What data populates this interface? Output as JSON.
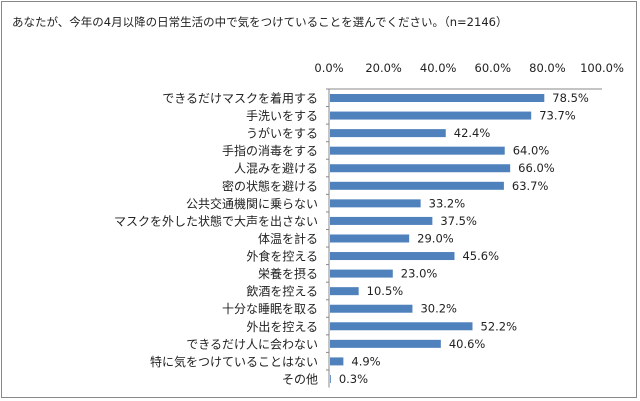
{
  "chart_data": {
    "type": "bar",
    "orientation": "horizontal",
    "title": "あなたが、今年の4月以降の日常生活の中で気をつけていることを選んでください。（n=2146）",
    "categories": [
      "できるだけマスクを着用する",
      "手洗いをする",
      "うがいをする",
      "手指の消毒をする",
      "人混みを避ける",
      "密の状態を避ける",
      "公共交通機関に乗らない",
      "マスクを外した状態で大声を出さない",
      "体温を計る",
      "外食を控える",
      "栄養を摂る",
      "飲酒を控える",
      "十分な睡眠を取る",
      "外出を控える",
      "できるだけ人に会わない",
      "特に気をつけていることはない",
      "その他"
    ],
    "values": [
      78.5,
      73.7,
      42.4,
      64.0,
      66.0,
      63.7,
      33.2,
      37.5,
      29.0,
      45.6,
      23.0,
      10.5,
      30.2,
      52.2,
      40.6,
      4.9,
      0.3
    ],
    "data_labels": [
      "78.5%",
      "73.7%",
      "42.4%",
      "64.0%",
      "66.0%",
      "63.7%",
      "33.2%",
      "37.5%",
      "29.0%",
      "45.6%",
      "23.0%",
      "10.5%",
      "30.2%",
      "52.2%",
      "40.6%",
      "4.9%",
      "0.3%"
    ],
    "xlim": [
      0,
      100
    ],
    "x_ticks": [
      "0.0%",
      "20.0%",
      "40.0%",
      "60.0%",
      "80.0%",
      "100.0%"
    ],
    "x_axis_position": "top",
    "grid": false,
    "bar_color": "#4f81bd"
  }
}
